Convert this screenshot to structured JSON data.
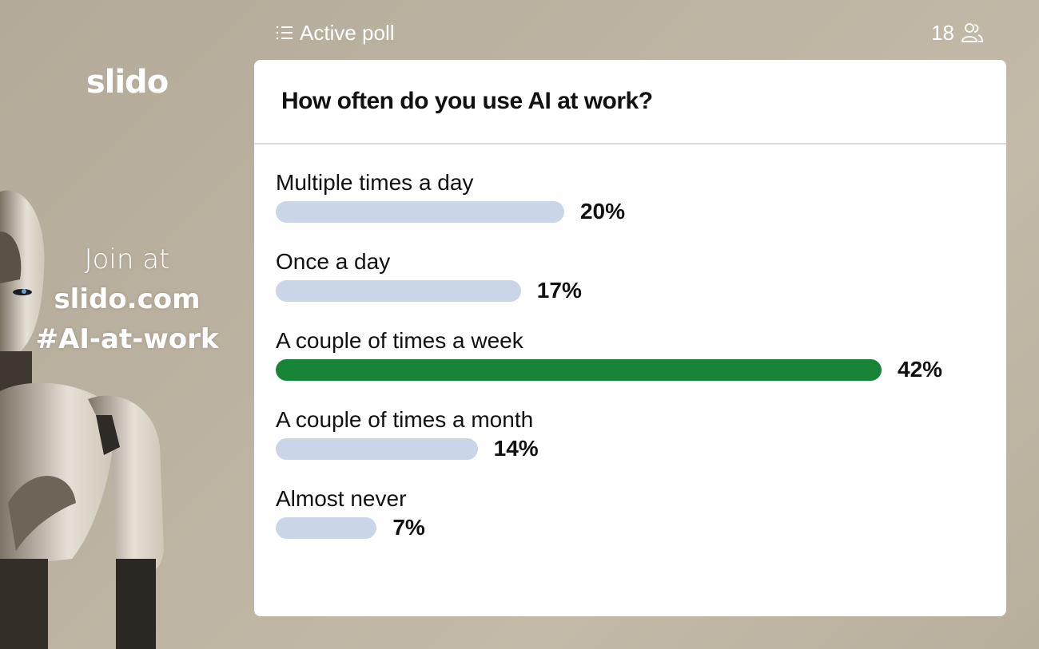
{
  "sidebar": {
    "logo": "slido",
    "join_line1": "Join at",
    "join_line2": "slido.com",
    "join_line3": "#AI-at-work"
  },
  "header": {
    "status_icon": "list-icon",
    "status_label": "Active poll",
    "participants_count": "18",
    "participants_icon": "users-icon"
  },
  "poll": {
    "question": "How often do you use AI at work?",
    "colors": {
      "winner": "#178438",
      "default": "#cbd5e8"
    },
    "options": [
      {
        "label": "Multiple times a day",
        "percent": 20,
        "percent_label": "20%"
      },
      {
        "label": "Once a day",
        "percent": 17,
        "percent_label": "17%"
      },
      {
        "label": "A couple of times a week",
        "percent": 42,
        "percent_label": "42%",
        "winner": true
      },
      {
        "label": "A couple of times a month",
        "percent": 14,
        "percent_label": "14%"
      },
      {
        "label": "Almost never",
        "percent": 7,
        "percent_label": "7%"
      }
    ]
  }
}
